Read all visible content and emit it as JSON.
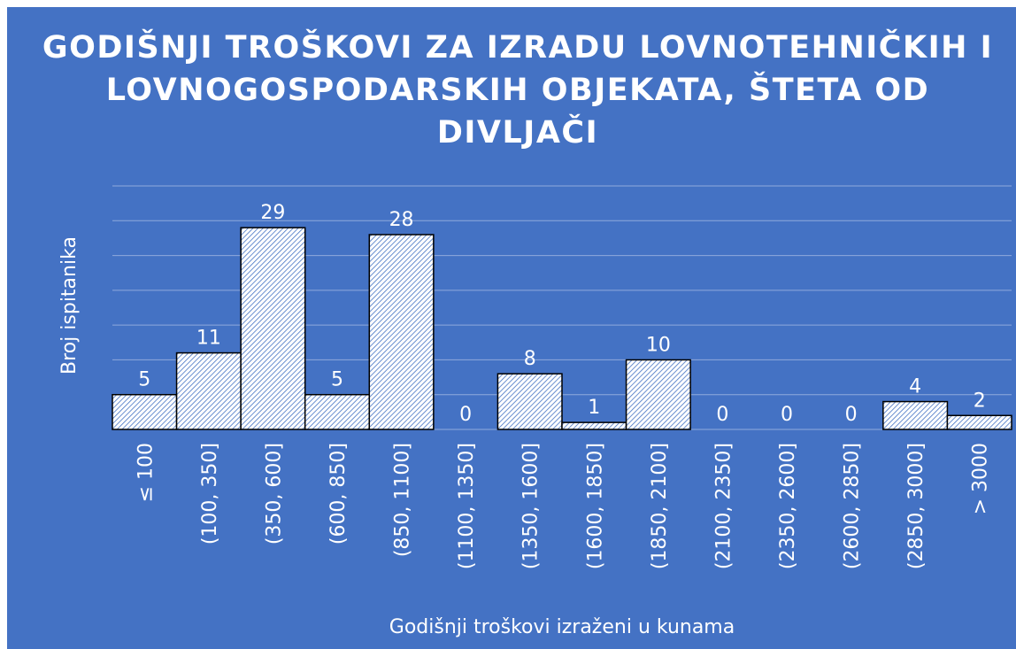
{
  "chart_data": {
    "type": "bar",
    "title": "GODIŠNJI TROŠKOVI ZA IZRADU LOVNOTEHNIČKIH I LOVNOGOSPODARSKIH OBJEKATA, ŠTETA OD DIVLJAČI",
    "xlabel": "Godišnji troškovi izraženi u kunama",
    "ylabel": "Broj ispitanika",
    "categories": [
      "≤ 100",
      "(100, 350]",
      "(350, 600]",
      "(600, 850]",
      "(850, 1100]",
      "(1100, 1350]",
      "(1350, 1600]",
      "(1600, 1850]",
      "(1850, 2100]",
      "(2100, 2350]",
      "(2350, 2600]",
      "(2600, 2850]",
      "(2850, 3000]",
      "> 3000"
    ],
    "values": [
      5,
      11,
      29,
      5,
      28,
      0,
      8,
      1,
      10,
      0,
      0,
      0,
      4,
      2
    ],
    "ylim": [
      0,
      35
    ],
    "yticks": [
      0,
      5,
      10,
      15,
      20,
      25,
      30,
      35
    ],
    "grid": true
  }
}
